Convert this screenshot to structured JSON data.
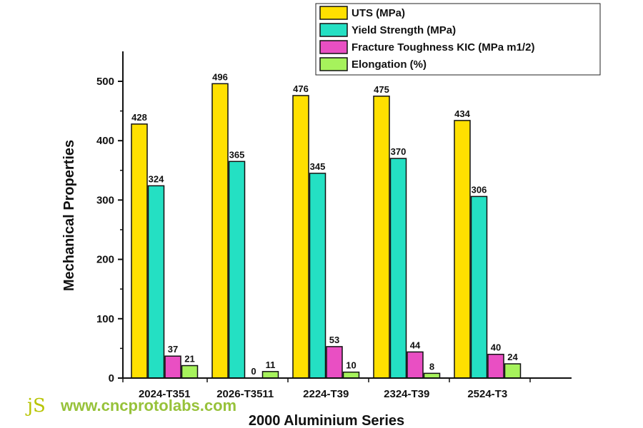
{
  "chart_data": {
    "type": "bar",
    "categories": [
      "2024-T351",
      "2026-T3511",
      "2224-T39",
      "2324-T39",
      "2524-T3"
    ],
    "series": [
      {
        "name": "UTS (MPa)",
        "color": "#FFE000",
        "values": [
          428,
          496,
          476,
          475,
          434
        ],
        "labels": [
          "428",
          "496",
          "476",
          "475",
          "434"
        ]
      },
      {
        "name": "Yield Strength (MPa)",
        "color": "#24E0C3",
        "values": [
          324,
          365,
          345,
          370,
          306
        ],
        "labels": [
          "324",
          "365",
          "345",
          "370",
          "306"
        ]
      },
      {
        "name": "Fracture Toughness KIC  (MPa m1/2)",
        "color": "#E94FC3",
        "values": [
          37,
          0,
          53,
          44,
          40
        ],
        "labels": [
          "37",
          "0",
          "53",
          "44",
          "40"
        ]
      },
      {
        "name": "Elongation (%)",
        "color": "#A6F25C",
        "values": [
          21,
          11,
          10,
          8,
          24
        ],
        "labels": [
          "21",
          "11",
          "10",
          "8",
          "24"
        ]
      }
    ],
    "xlabel": "2000 Aluminium Series",
    "ylabel": "Mechanical Properties",
    "ylim": [
      0,
      550
    ],
    "yticks": [
      0,
      100,
      200,
      300,
      400,
      500
    ],
    "legend_position": "top-right",
    "grid": false
  },
  "watermark": {
    "logo_text": "JS",
    "url": "www.cncprotolabs.com"
  }
}
